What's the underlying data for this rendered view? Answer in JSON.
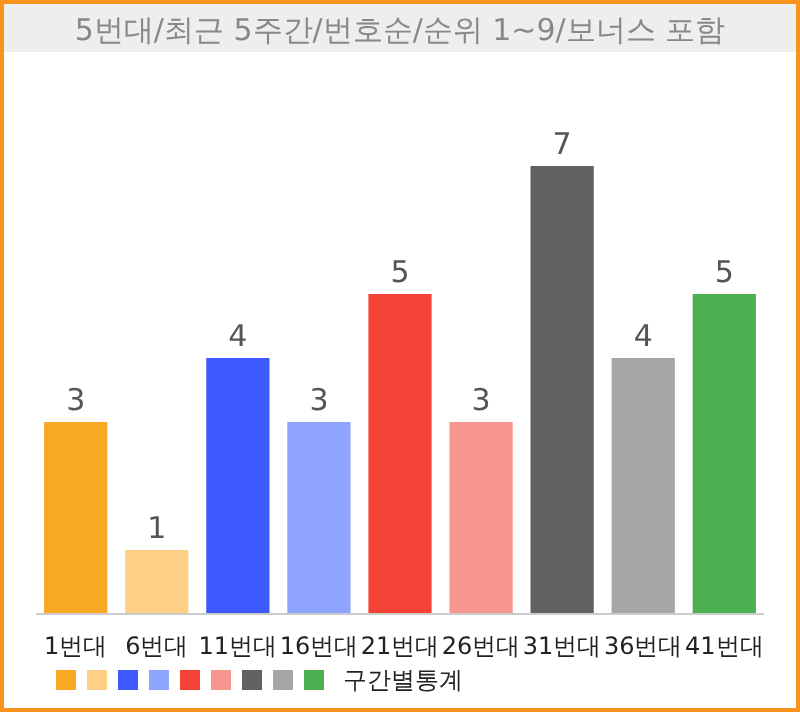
{
  "chart_data": {
    "type": "bar",
    "title": "5번대/최근 5주간/번호순/순위 1~9/보너스 포함",
    "categories": [
      "1번대",
      "6번대",
      "11번대",
      "16번대",
      "21번대",
      "26번대",
      "31번대",
      "36번대",
      "41번대"
    ],
    "series": [
      {
        "name": "구간별통계",
        "colors": [
          "#f9a825",
          "#fdd085",
          "#3d5afe",
          "#8fa4ff",
          "#f44336",
          "#f7968e",
          "#616161",
          "#a6a6a6",
          "#4caf50"
        ],
        "values": [
          3,
          1,
          4,
          3,
          5,
          3,
          7,
          4,
          5
        ]
      }
    ],
    "data_labels": true,
    "legend": "bottom left"
  }
}
